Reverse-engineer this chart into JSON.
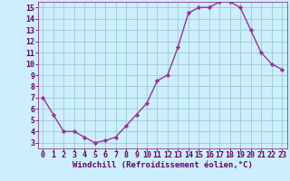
{
  "x": [
    0,
    1,
    2,
    3,
    4,
    5,
    6,
    7,
    8,
    9,
    10,
    11,
    12,
    13,
    14,
    15,
    16,
    17,
    18,
    19,
    20,
    21,
    22,
    23
  ],
  "y": [
    7.0,
    5.5,
    4.0,
    4.0,
    3.5,
    3.0,
    3.2,
    3.5,
    4.5,
    5.5,
    6.5,
    8.5,
    9.0,
    11.5,
    14.5,
    15.0,
    15.0,
    15.5,
    15.5,
    15.0,
    13.0,
    11.0,
    10.0,
    9.5
  ],
  "line_color": "#993399",
  "marker": "D",
  "marker_size": 2.2,
  "bg_color": "#cceeff",
  "grid_color": "#99cccc",
  "xlabel": "Windchill (Refroidissement éolien,°C)",
  "xlabel_color": "#660066",
  "tick_color": "#660066",
  "ylim": [
    2.5,
    15.5
  ],
  "xlim": [
    -0.5,
    23.5
  ],
  "yticks": [
    3,
    4,
    5,
    6,
    7,
    8,
    9,
    10,
    11,
    12,
    13,
    14,
    15
  ],
  "xticks": [
    0,
    1,
    2,
    3,
    4,
    5,
    6,
    7,
    8,
    9,
    10,
    11,
    12,
    13,
    14,
    15,
    16,
    17,
    18,
    19,
    20,
    21,
    22,
    23
  ],
  "xlabel_fontsize": 6.5,
  "tick_fontsize": 6.0,
  "line_width": 1.0,
  "spine_color": "#993399"
}
